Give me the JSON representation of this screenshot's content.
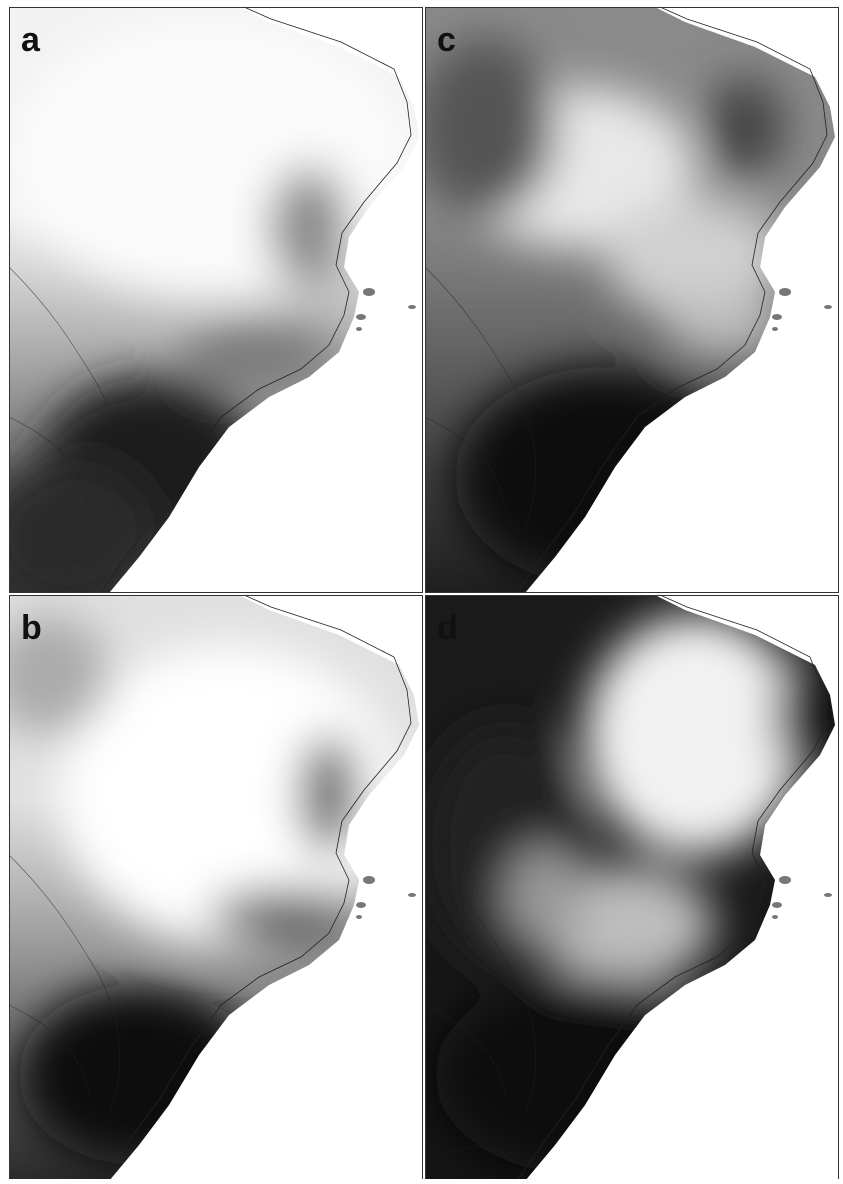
{
  "panels": [
    {
      "label": "a"
    },
    {
      "label": "c"
    },
    {
      "label": "b"
    },
    {
      "label": "d"
    }
  ]
}
